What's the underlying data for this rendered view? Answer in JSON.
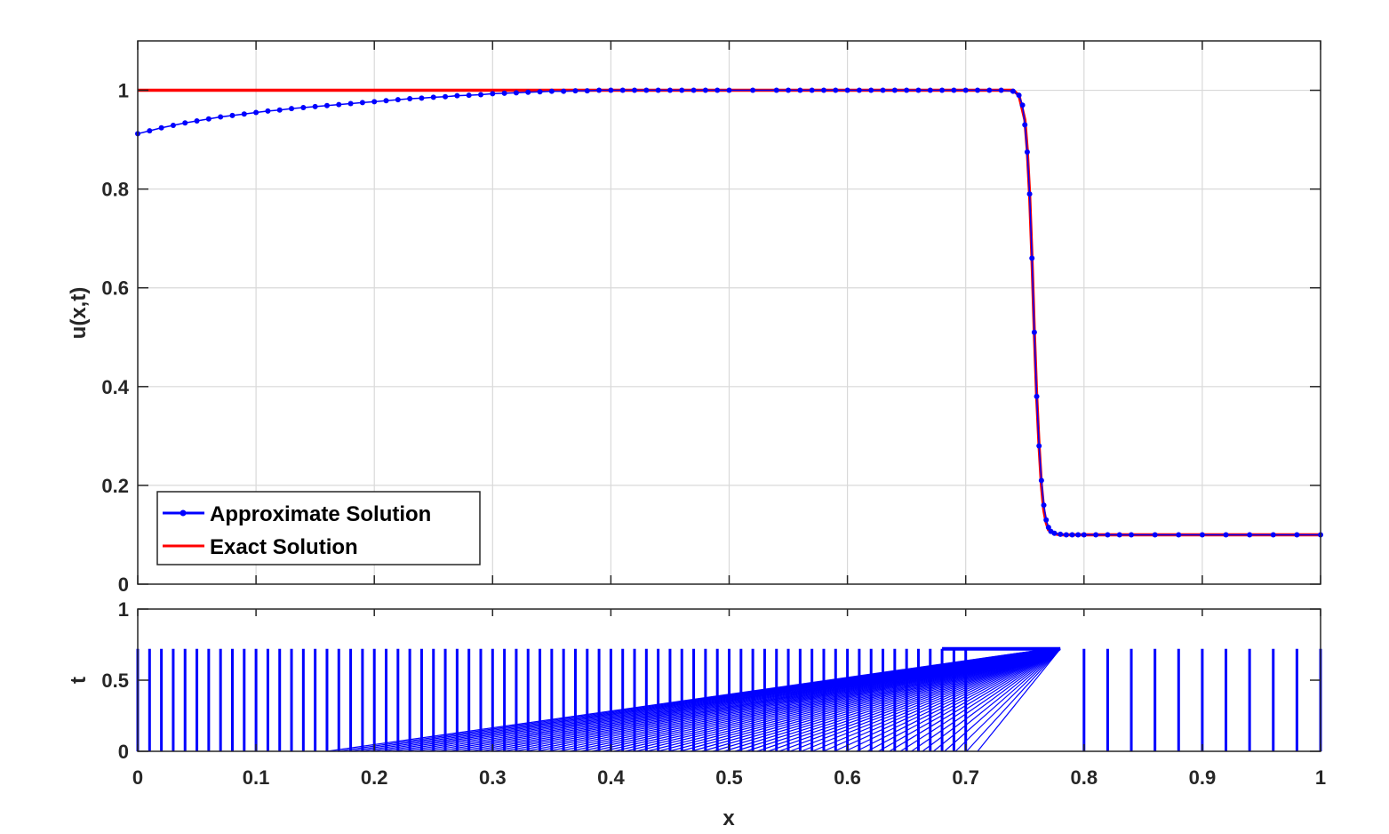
{
  "chart_data": [
    {
      "type": "line",
      "xlabel": "",
      "ylabel": "u(x,t)",
      "xlim": [
        0,
        1
      ],
      "ylim": [
        0,
        1.1
      ],
      "x_ticks": [
        "",
        "",
        "",
        "",
        "",
        "",
        "",
        "",
        "",
        "",
        ""
      ],
      "x_tick_values": [
        0,
        0.1,
        0.2,
        0.3,
        0.4,
        0.5,
        0.6,
        0.7,
        0.8,
        0.9,
        1
      ],
      "y_ticks": [
        "0",
        "0.2",
        "0.4",
        "0.6",
        "0.8",
        "1"
      ],
      "y_tick_values": [
        0,
        0.2,
        0.4,
        0.6,
        0.8,
        1
      ],
      "grid": true,
      "legend_position": "bottom-left",
      "series": [
        {
          "name": "Approximate Solution",
          "color": "#0000ff",
          "marker": "dot",
          "x": [
            0,
            0.01,
            0.02,
            0.03,
            0.04,
            0.05,
            0.06,
            0.07,
            0.08,
            0.09,
            0.1,
            0.11,
            0.12,
            0.13,
            0.14,
            0.15,
            0.16,
            0.17,
            0.18,
            0.19,
            0.2,
            0.21,
            0.22,
            0.23,
            0.24,
            0.25,
            0.26,
            0.27,
            0.28,
            0.29,
            0.3,
            0.31,
            0.32,
            0.33,
            0.34,
            0.35,
            0.36,
            0.37,
            0.38,
            0.39,
            0.4,
            0.41,
            0.42,
            0.43,
            0.44,
            0.45,
            0.46,
            0.47,
            0.48,
            0.49,
            0.5,
            0.52,
            0.54,
            0.55,
            0.56,
            0.57,
            0.58,
            0.59,
            0.6,
            0.61,
            0.62,
            0.63,
            0.64,
            0.65,
            0.66,
            0.67,
            0.68,
            0.69,
            0.7,
            0.71,
            0.72,
            0.73,
            0.74,
            0.745,
            0.748,
            0.75,
            0.752,
            0.754,
            0.756,
            0.758,
            0.76,
            0.762,
            0.764,
            0.766,
            0.768,
            0.77,
            0.772,
            0.775,
            0.78,
            0.785,
            0.79,
            0.795,
            0.8,
            0.81,
            0.82,
            0.83,
            0.84,
            0.86,
            0.88,
            0.9,
            0.92,
            0.94,
            0.96,
            0.98,
            1.0
          ],
          "y": [
            0.912,
            0.918,
            0.924,
            0.929,
            0.934,
            0.938,
            0.942,
            0.946,
            0.949,
            0.952,
            0.955,
            0.958,
            0.96,
            0.963,
            0.965,
            0.967,
            0.969,
            0.971,
            0.973,
            0.975,
            0.977,
            0.979,
            0.981,
            0.983,
            0.984,
            0.986,
            0.987,
            0.989,
            0.99,
            0.991,
            0.993,
            0.994,
            0.995,
            0.996,
            0.997,
            0.998,
            0.998,
            0.999,
            0.999,
            1.0,
            1.0,
            1.0,
            1.0,
            1.0,
            1.0,
            1.0,
            1.0,
            1.0,
            1.0,
            1.0,
            1.0,
            1.0,
            1.0,
            1.0,
            1.0,
            1.0,
            1.0,
            1.0,
            1.0,
            1.0,
            1.0,
            1.0,
            1.0,
            1.0,
            1.0,
            1.0,
            1.0,
            1.0,
            1.0,
            1.0,
            1.0,
            1.0,
            0.998,
            0.99,
            0.97,
            0.93,
            0.875,
            0.79,
            0.66,
            0.51,
            0.38,
            0.28,
            0.21,
            0.16,
            0.13,
            0.115,
            0.107,
            0.103,
            0.101,
            0.1,
            0.1,
            0.1,
            0.1,
            0.1,
            0.1,
            0.1,
            0.1,
            0.1,
            0.1,
            0.1,
            0.1,
            0.1,
            0.1,
            0.1,
            0.1
          ]
        },
        {
          "name": "Exact Solution",
          "color": "#ff0000",
          "x": [
            0,
            0.74,
            0.745,
            0.75,
            0.752,
            0.754,
            0.756,
            0.758,
            0.76,
            0.762,
            0.764,
            0.766,
            0.768,
            0.77,
            0.775,
            0.78,
            1.0
          ],
          "y": [
            1.0,
            1.0,
            0.99,
            0.94,
            0.88,
            0.79,
            0.66,
            0.51,
            0.38,
            0.28,
            0.2,
            0.15,
            0.125,
            0.11,
            0.102,
            0.1,
            0.1
          ]
        }
      ]
    },
    {
      "type": "line",
      "xlabel": "x",
      "ylabel": "t",
      "xlim": [
        0,
        1
      ],
      "ylim": [
        0,
        1
      ],
      "x_ticks": [
        "0",
        "0.1",
        "0.2",
        "0.3",
        "0.4",
        "0.5",
        "0.6",
        "0.7",
        "0.8",
        "0.9",
        "1"
      ],
      "x_tick_values": [
        0,
        0.1,
        0.2,
        0.3,
        0.4,
        0.5,
        0.6,
        0.7,
        0.8,
        0.9,
        1
      ],
      "y_ticks": [
        "0",
        "0.5",
        "1"
      ],
      "y_tick_values": [
        0,
        0.5,
        1
      ],
      "grid": false,
      "description_series": "mesh node trajectories",
      "t_final": 0.72,
      "sparse_x": [
        0,
        0.01,
        0.02,
        0.03,
        0.04,
        0.05,
        0.06,
        0.07,
        0.08,
        0.09,
        0.1,
        0.11,
        0.12,
        0.13,
        0.14,
        0.15,
        0.16,
        0.17,
        0.18,
        0.19,
        0.2,
        0.21,
        0.22,
        0.23,
        0.24,
        0.25,
        0.26,
        0.27,
        0.28,
        0.29,
        0.3,
        0.31,
        0.32,
        0.33,
        0.34,
        0.35,
        0.36,
        0.37,
        0.38,
        0.39,
        0.4,
        0.41,
        0.42,
        0.43,
        0.44,
        0.45,
        0.46,
        0.47,
        0.48,
        0.49,
        0.5,
        0.51,
        0.52,
        0.53,
        0.54,
        0.55,
        0.56,
        0.57,
        0.58,
        0.59,
        0.6,
        0.61,
        0.62,
        0.63,
        0.64,
        0.65,
        0.66,
        0.67,
        0.68,
        0.69,
        0.7,
        0.8,
        0.82,
        0.84,
        0.86,
        0.88,
        0.9,
        0.92,
        0.94,
        0.96,
        0.98,
        1.0
      ],
      "shock_band": {
        "x_start": [
          0.16,
          0.78
        ],
        "t_start": [
          0,
          0.72
        ]
      }
    }
  ]
}
